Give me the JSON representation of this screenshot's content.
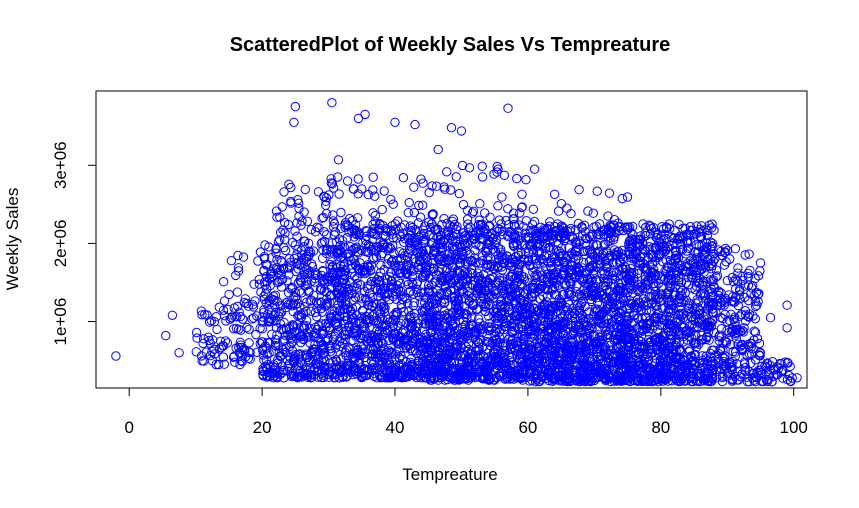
{
  "chart_data": {
    "type": "scatter",
    "title": "ScatteredPlot of Weekly Sales Vs Tempreature",
    "xlabel": "Tempreature",
    "ylabel": "Weekly Sales",
    "xlim": [
      -5,
      102
    ],
    "ylim": [
      150000,
      3950000
    ],
    "x_ticks": [
      0,
      20,
      40,
      60,
      80,
      100
    ],
    "x_tick_labels": [
      "0",
      "20",
      "40",
      "60",
      "80",
      "100"
    ],
    "y_ticks": [
      1000000,
      2000000,
      3000000
    ],
    "y_tick_labels": [
      "1e+06",
      "2e+06",
      "3e+06"
    ],
    "grid": false,
    "point_color": "#0000ff",
    "marker": "open-circle",
    "highlighted_points": [
      {
        "x": -2,
        "y": 560000
      },
      {
        "x": 5.5,
        "y": 820000
      },
      {
        "x": 6.5,
        "y": 1080000
      },
      {
        "x": 7.5,
        "y": 600000
      },
      {
        "x": 25,
        "y": 3750000
      },
      {
        "x": 24.8,
        "y": 3550000
      },
      {
        "x": 30.5,
        "y": 3800000
      },
      {
        "x": 34.5,
        "y": 3600000
      },
      {
        "x": 35.5,
        "y": 3650000
      },
      {
        "x": 57,
        "y": 3730000
      },
      {
        "x": 40,
        "y": 3550000
      },
      {
        "x": 43,
        "y": 3520000
      },
      {
        "x": 48.5,
        "y": 3480000
      },
      {
        "x": 50,
        "y": 3440000
      },
      {
        "x": 31.5,
        "y": 3070000
      },
      {
        "x": 46.5,
        "y": 3200000
      },
      {
        "x": 55.5,
        "y": 2950000
      },
      {
        "x": 61,
        "y": 2950000
      },
      {
        "x": 88,
        "y": 2170000
      },
      {
        "x": 95,
        "y": 1750000
      },
      {
        "x": 96.5,
        "y": 1050000
      },
      {
        "x": 99,
        "y": 1210000
      },
      {
        "x": 99,
        "y": 920000
      },
      {
        "x": 100.5,
        "y": 280000
      },
      {
        "x": 99.5,
        "y": 240000
      }
    ],
    "clusters": [
      {
        "x_range": [
          10,
          20
        ],
        "y_range": [
          450000,
          1200000
        ],
        "n": 90
      },
      {
        "x_range": [
          14,
          22
        ],
        "y_range": [
          1000000,
          1900000
        ],
        "n": 30
      },
      {
        "x_range": [
          20,
          30
        ],
        "y_range": [
          280000,
          2000000
        ],
        "n": 420
      },
      {
        "x_range": [
          22,
          30
        ],
        "y_range": [
          2000000,
          2800000
        ],
        "n": 50
      },
      {
        "x_range": [
          30,
          45
        ],
        "y_range": [
          280000,
          2250000
        ],
        "n": 900
      },
      {
        "x_range": [
          30,
          45
        ],
        "y_range": [
          2250000,
          2900000
        ],
        "n": 45
      },
      {
        "x_range": [
          45,
          60
        ],
        "y_range": [
          250000,
          2250000
        ],
        "n": 1100
      },
      {
        "x_range": [
          45,
          60
        ],
        "y_range": [
          2250000,
          3000000
        ],
        "n": 50
      },
      {
        "x_range": [
          60,
          75
        ],
        "y_range": [
          230000,
          2250000
        ],
        "n": 1200
      },
      {
        "x_range": [
          60,
          75
        ],
        "y_range": [
          2250000,
          2700000
        ],
        "n": 20
      },
      {
        "x_range": [
          75,
          88
        ],
        "y_range": [
          230000,
          2250000
        ],
        "n": 950
      },
      {
        "x_range": [
          88,
          95
        ],
        "y_range": [
          230000,
          1950000
        ],
        "n": 220
      },
      {
        "x_range": [
          95,
          100
        ],
        "y_range": [
          230000,
          500000
        ],
        "n": 40
      }
    ]
  }
}
